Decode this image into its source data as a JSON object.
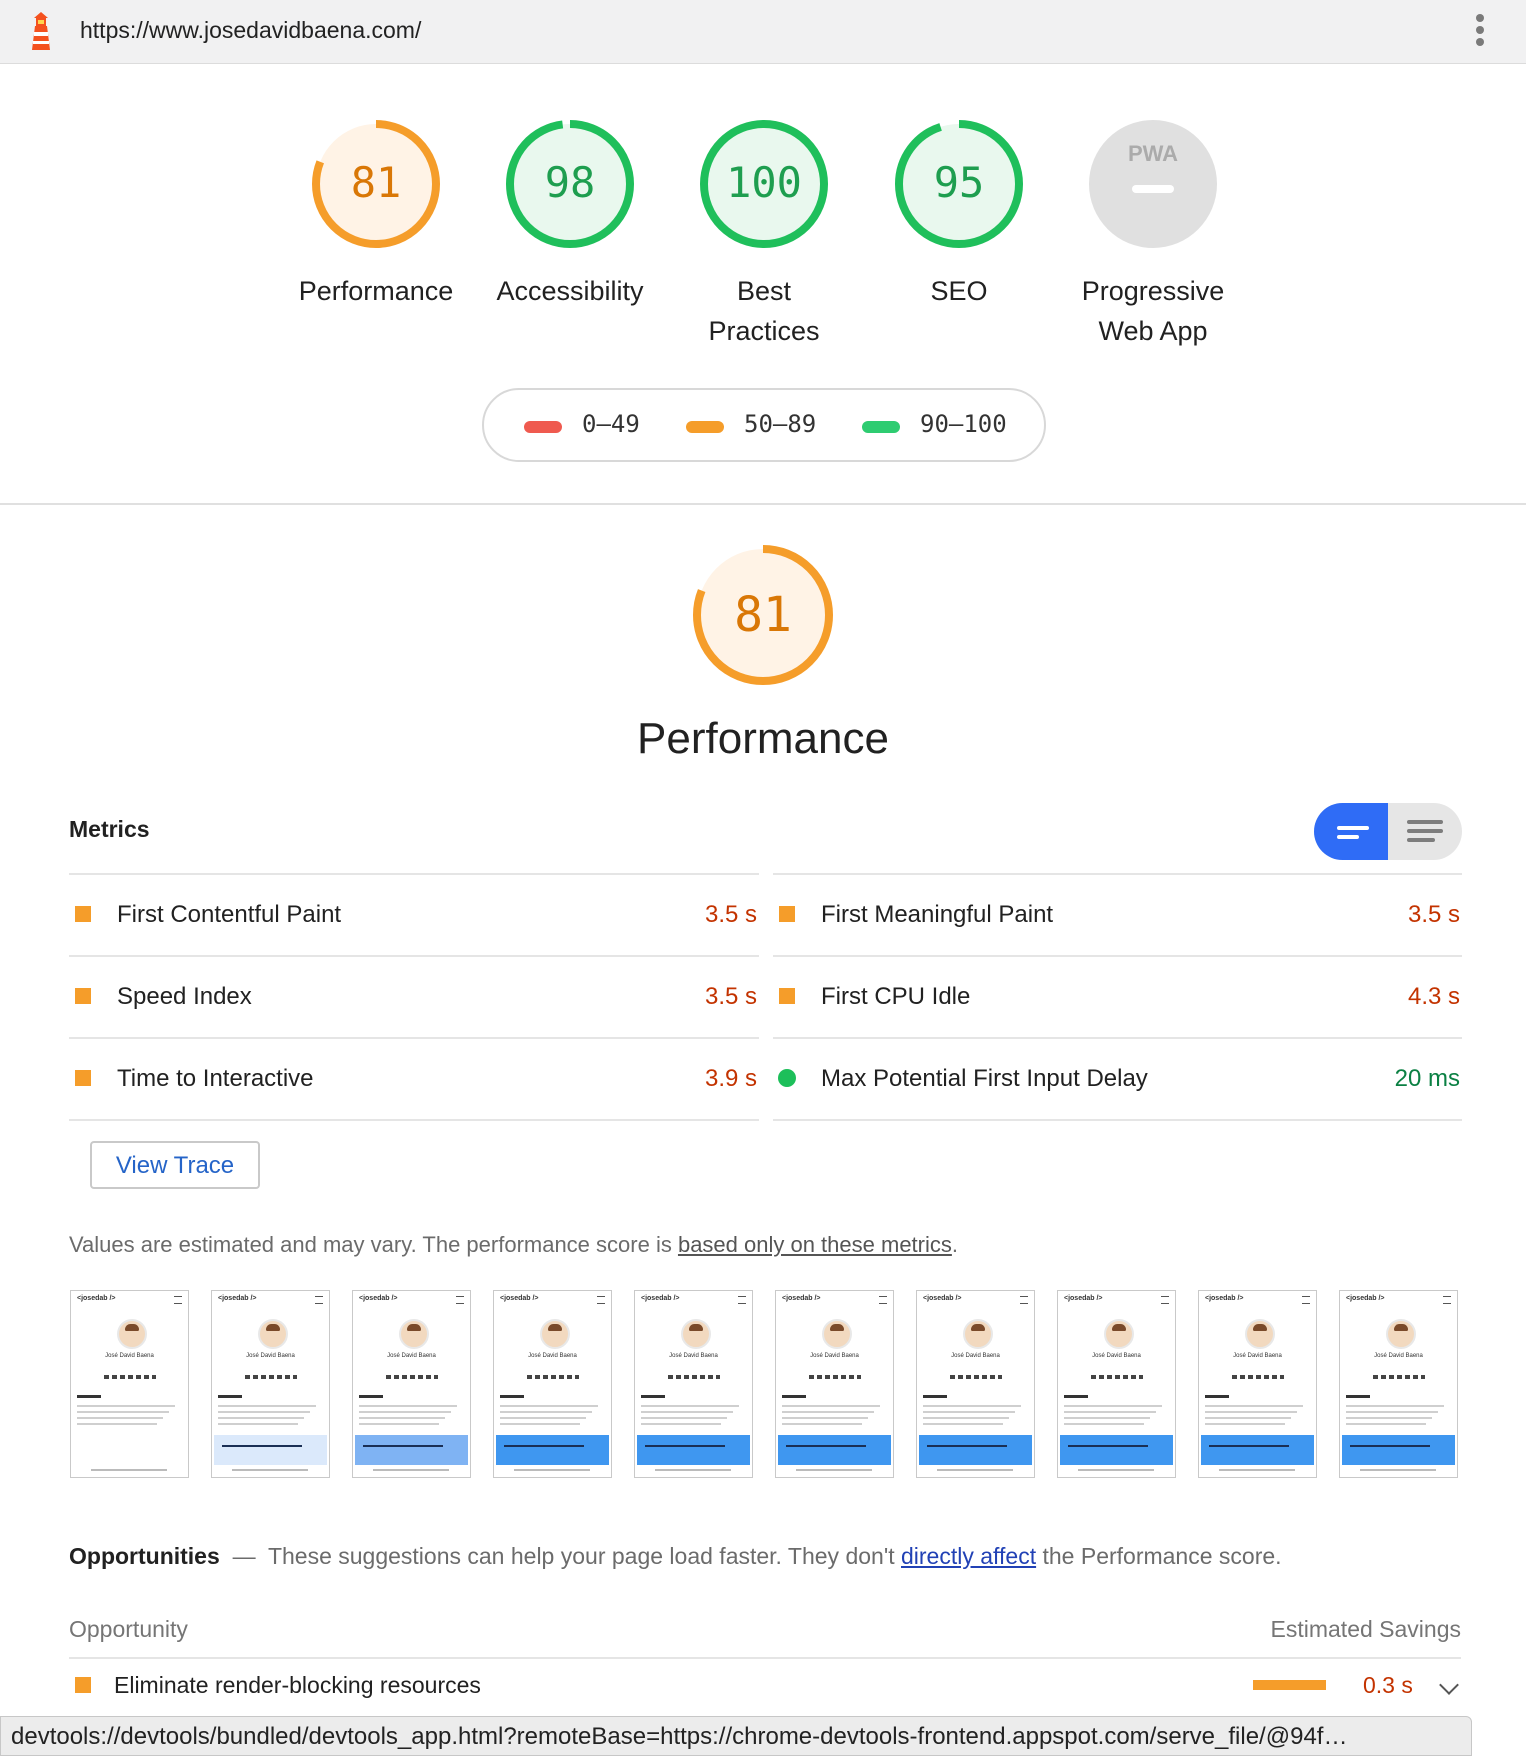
{
  "url": "https://www.josedavidbaena.com/",
  "colors": {
    "fail": "#ef5a4f",
    "average": "#f59d2a",
    "pass": "#2ecc71",
    "pwa_gray": "#e0e0e0",
    "accent_blue": "#2f6cf6"
  },
  "gauges": [
    {
      "score": "81",
      "value": 81,
      "label_1": "Performance",
      "label_2": "",
      "status": "average"
    },
    {
      "score": "98",
      "value": 98,
      "label_1": "Accessibility",
      "label_2": "",
      "status": "pass"
    },
    {
      "score": "100",
      "value": 100,
      "label_1": "Best",
      "label_2": "Practices",
      "status": "pass"
    },
    {
      "score": "95",
      "value": 95,
      "label_1": "SEO",
      "label_2": "",
      "status": "pass"
    },
    {
      "score": "",
      "badge": "PWA",
      "label_1": "Progressive",
      "label_2": "Web App",
      "status": "na"
    }
  ],
  "legend": [
    {
      "range": "0–49",
      "status": "fail"
    },
    {
      "range": "50–89",
      "status": "average"
    },
    {
      "range": "90–100",
      "status": "pass"
    }
  ],
  "category": {
    "score": "81",
    "value": 81,
    "title": "Performance"
  },
  "metrics": {
    "header": "Metrics",
    "items": [
      {
        "name": "First Contentful Paint",
        "value": "3.5 s",
        "status": "average"
      },
      {
        "name": "First Meaningful Paint",
        "value": "3.5 s",
        "status": "average"
      },
      {
        "name": "Speed Index",
        "value": "3.5 s",
        "status": "average"
      },
      {
        "name": "First CPU Idle",
        "value": "4.3 s",
        "status": "average"
      },
      {
        "name": "Time to Interactive",
        "value": "3.9 s",
        "status": "average"
      },
      {
        "name": "Max Potential First Input Delay",
        "value": "20 ms",
        "status": "pass"
      }
    ],
    "view_trace": "View Trace",
    "note_prefix": "Values are estimated and may vary. The performance score is ",
    "note_link": "based only on these metrics",
    "note_suffix": "."
  },
  "filmstrip": {
    "frames": [
      {
        "site_header": "<josedab />",
        "name": "José David Baena",
        "cookie_banner": "none"
      },
      {
        "site_header": "<josedab />",
        "name": "José David Baena",
        "cookie_banner": "faint"
      },
      {
        "site_header": "<josedab />",
        "name": "José David Baena",
        "cookie_banner": "light"
      },
      {
        "site_header": "<josedab />",
        "name": "José David Baena",
        "cookie_banner": "full"
      },
      {
        "site_header": "<josedab />",
        "name": "José David Baena",
        "cookie_banner": "full"
      },
      {
        "site_header": "<josedab />",
        "name": "José David Baena",
        "cookie_banner": "full"
      },
      {
        "site_header": "<josedab />",
        "name": "José David Baena",
        "cookie_banner": "full"
      },
      {
        "site_header": "<josedab />",
        "name": "José David Baena",
        "cookie_banner": "full"
      },
      {
        "site_header": "<josedab />",
        "name": "José David Baena",
        "cookie_banner": "full"
      },
      {
        "site_header": "<josedab />",
        "name": "José David Baena",
        "cookie_banner": "full"
      }
    ]
  },
  "opportunities": {
    "title": "Opportunities",
    "dash": "—",
    "desc_prefix": "These suggestions can help your page load faster. They don't ",
    "desc_link": "directly affect",
    "desc_suffix": " the Performance score.",
    "col_left": "Opportunity",
    "col_right": "Estimated Savings",
    "items": [
      {
        "name": "Eliminate render-blocking resources",
        "savings": "0.3 s",
        "status": "average"
      }
    ]
  },
  "status_bar": "devtools://devtools/bundled/devtools_app.html?remoteBase=https://chrome-devtools-frontend.appspot.com/serve_file/@94f…"
}
